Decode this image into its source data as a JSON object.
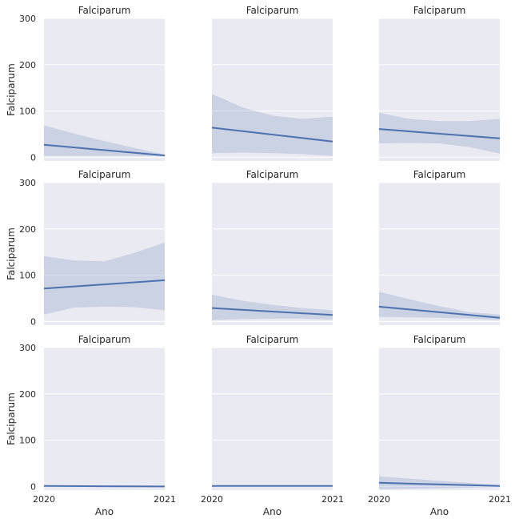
{
  "chart_data": {
    "type": "line",
    "layout": "3x3 facet grid, shared axes",
    "panel_title": "Falciparum",
    "xlabel": "Ano",
    "ylabel": "Falciparum",
    "xlim": [
      2020,
      2021
    ],
    "ylim": [
      -8,
      300
    ],
    "x_ticks": [
      "2020",
      "2021"
    ],
    "y_ticks": [
      0,
      100,
      200,
      300
    ],
    "grid": true,
    "series_color": "#4c72b0",
    "panels": [
      {
        "title": "Falciparum",
        "x": [
          2020,
          2021
        ],
        "y": [
          27,
          4
        ],
        "ci_x": [
          2020,
          2020.25,
          2020.5,
          2020.75,
          2021
        ],
        "ci_upper": [
          69,
          51,
          35,
          20,
          6
        ],
        "ci_lower": [
          3,
          3,
          3,
          3,
          2
        ]
      },
      {
        "title": "Falciparum",
        "x": [
          2020,
          2021
        ],
        "y": [
          64,
          34
        ],
        "ci_x": [
          2020,
          2020.25,
          2020.5,
          2020.75,
          2021
        ],
        "ci_upper": [
          137,
          108,
          90,
          83,
          88
        ],
        "ci_lower": [
          9,
          10,
          9,
          7,
          3
        ]
      },
      {
        "title": "Falciparum",
        "x": [
          2020,
          2021
        ],
        "y": [
          61,
          41
        ],
        "ci_x": [
          2020,
          2020.25,
          2020.5,
          2020.75,
          2021
        ],
        "ci_upper": [
          96,
          83,
          78,
          78,
          83
        ],
        "ci_lower": [
          30,
          31,
          30,
          22,
          8
        ]
      },
      {
        "title": "Falciparum",
        "x": [
          2020,
          2021
        ],
        "y": [
          71,
          89
        ],
        "ci_x": [
          2020,
          2020.25,
          2020.5,
          2020.75,
          2021
        ],
        "ci_upper": [
          141,
          132,
          130,
          148,
          171
        ],
        "ci_lower": [
          15,
          30,
          32,
          31,
          24
        ]
      },
      {
        "title": "Falciparum",
        "x": [
          2020,
          2021
        ],
        "y": [
          29,
          14
        ],
        "ci_x": [
          2020,
          2020.25,
          2020.5,
          2020.75,
          2021
        ],
        "ci_upper": [
          58,
          45,
          36,
          29,
          24
        ],
        "ci_lower": [
          3,
          5,
          6,
          6,
          4
        ]
      },
      {
        "title": "Falciparum",
        "x": [
          2020,
          2021
        ],
        "y": [
          32,
          8
        ],
        "ci_x": [
          2020,
          2020.25,
          2020.5,
          2020.75,
          2021
        ],
        "ci_upper": [
          64,
          48,
          33,
          20,
          15
        ],
        "ci_lower": [
          10,
          9,
          8,
          6,
          3
        ]
      },
      {
        "title": "Falciparum",
        "x": [
          2020,
          2021
        ],
        "y": [
          1,
          0
        ],
        "ci_x": [
          2020,
          2021
        ],
        "ci_upper": [
          2,
          1
        ],
        "ci_lower": [
          0,
          0
        ]
      },
      {
        "title": "Falciparum",
        "x": [
          2020,
          2021
        ],
        "y": [
          1,
          1
        ],
        "ci_x": [
          2020,
          2021
        ],
        "ci_upper": [
          2,
          2
        ],
        "ci_lower": [
          0,
          0
        ]
      },
      {
        "title": "Falciparum",
        "x": [
          2020,
          2021
        ],
        "y": [
          8,
          1
        ],
        "ci_x": [
          2020,
          2020.5,
          2021
        ],
        "ci_upper": [
          22,
          12,
          3
        ],
        "ci_lower": [
          -6,
          -4,
          -1
        ]
      }
    ]
  }
}
